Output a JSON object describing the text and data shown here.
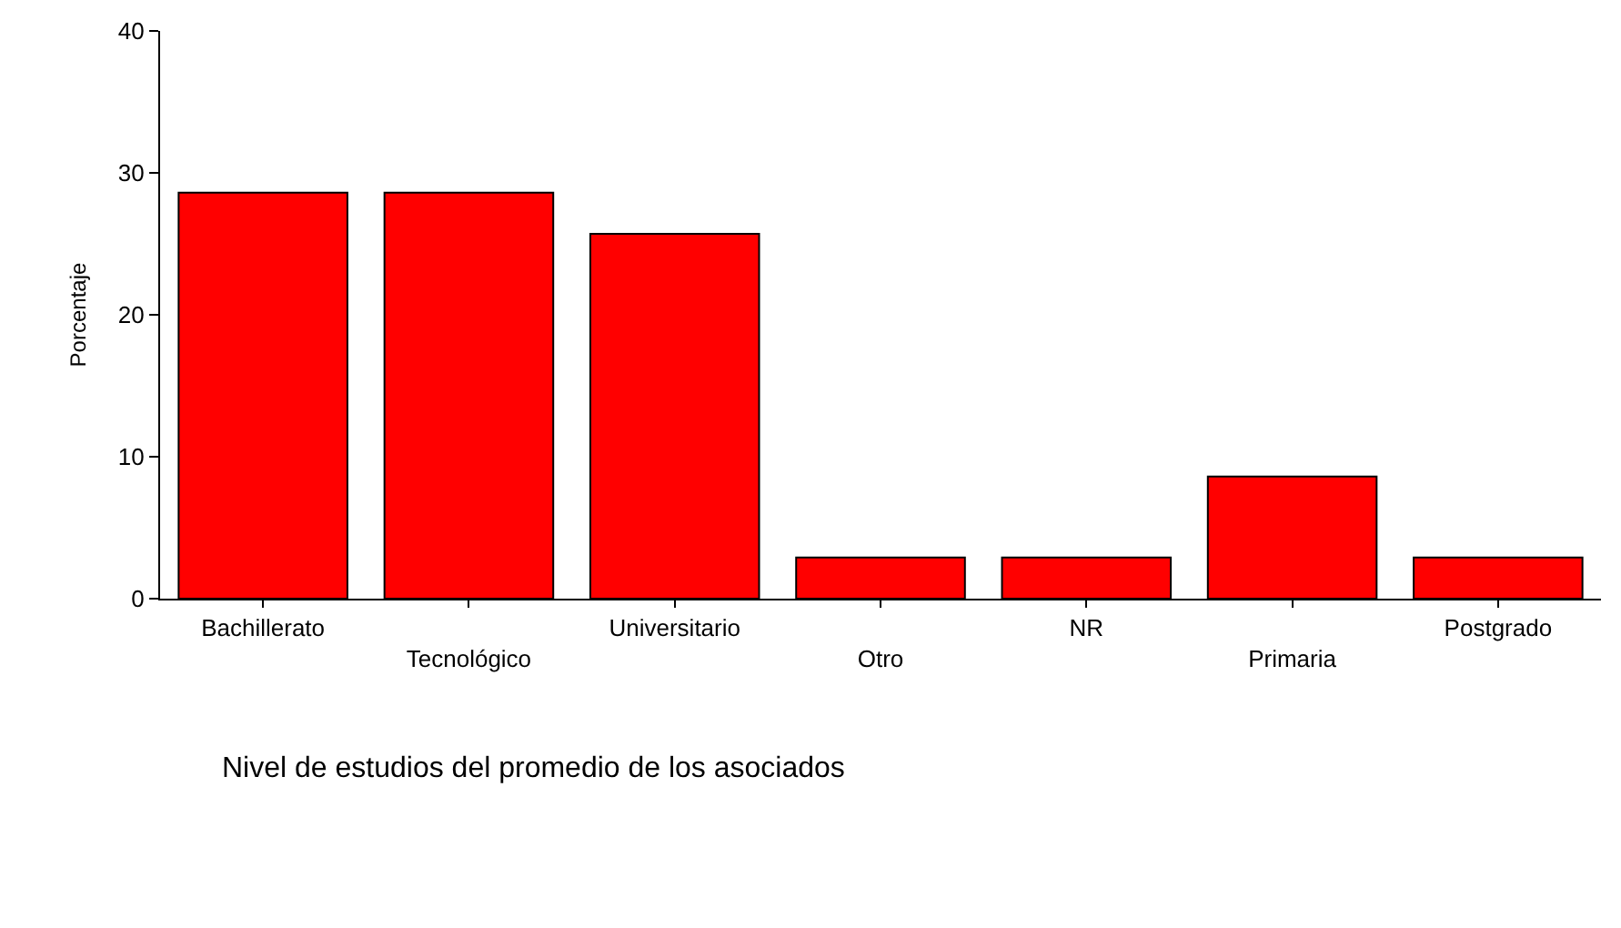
{
  "chart_data": {
    "type": "bar",
    "xlabel": "Nivel de estudios del promedio de los asociados",
    "ylabel": "Porcentaje",
    "categories": [
      "Bachillerato",
      "Tecnológico",
      "Universitario",
      "Otro",
      "NR",
      "Primaria",
      "Postgrado"
    ],
    "values": [
      28.6,
      28.6,
      25.7,
      2.9,
      2.9,
      8.6,
      2.9
    ],
    "color": "#ff0000",
    "ylim": [
      0,
      40
    ],
    "yticks": [
      0,
      10,
      20,
      30,
      40
    ],
    "grid": false
  }
}
